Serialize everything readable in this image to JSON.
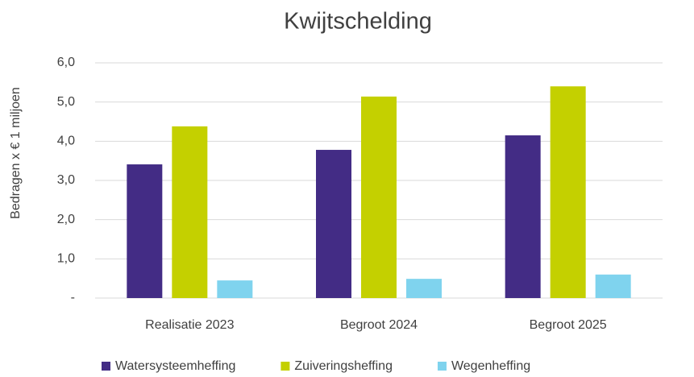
{
  "chart_data": {
    "type": "bar",
    "title": "Kwijtschelding",
    "y_label": "Bedragen x € 1 miljoen",
    "categories": [
      "Realisatie 2023",
      "Begroot 2024",
      "Begroot 2025"
    ],
    "series": [
      {
        "name": "Watersysteemheffing",
        "color": "#432c85",
        "values": [
          3.41,
          3.78,
          4.15
        ]
      },
      {
        "name": "Zuiveringsheffing",
        "color": "#c4d000",
        "values": [
          4.38,
          5.14,
          5.4
        ]
      },
      {
        "name": "Wegenheffing",
        "color": "#7fd3ee",
        "values": [
          0.45,
          0.49,
          0.6
        ]
      }
    ],
    "ylim": [
      0,
      6
    ],
    "yticks": [
      {
        "value": 0,
        "label": "-"
      },
      {
        "value": 1,
        "label": "1,0"
      },
      {
        "value": 2,
        "label": "2,0"
      },
      {
        "value": 3,
        "label": "3,0"
      },
      {
        "value": 4,
        "label": "4,0"
      },
      {
        "value": 5,
        "label": "5,0"
      },
      {
        "value": 6,
        "label": "6,0"
      }
    ],
    "grid": true,
    "legend": "bottom"
  }
}
